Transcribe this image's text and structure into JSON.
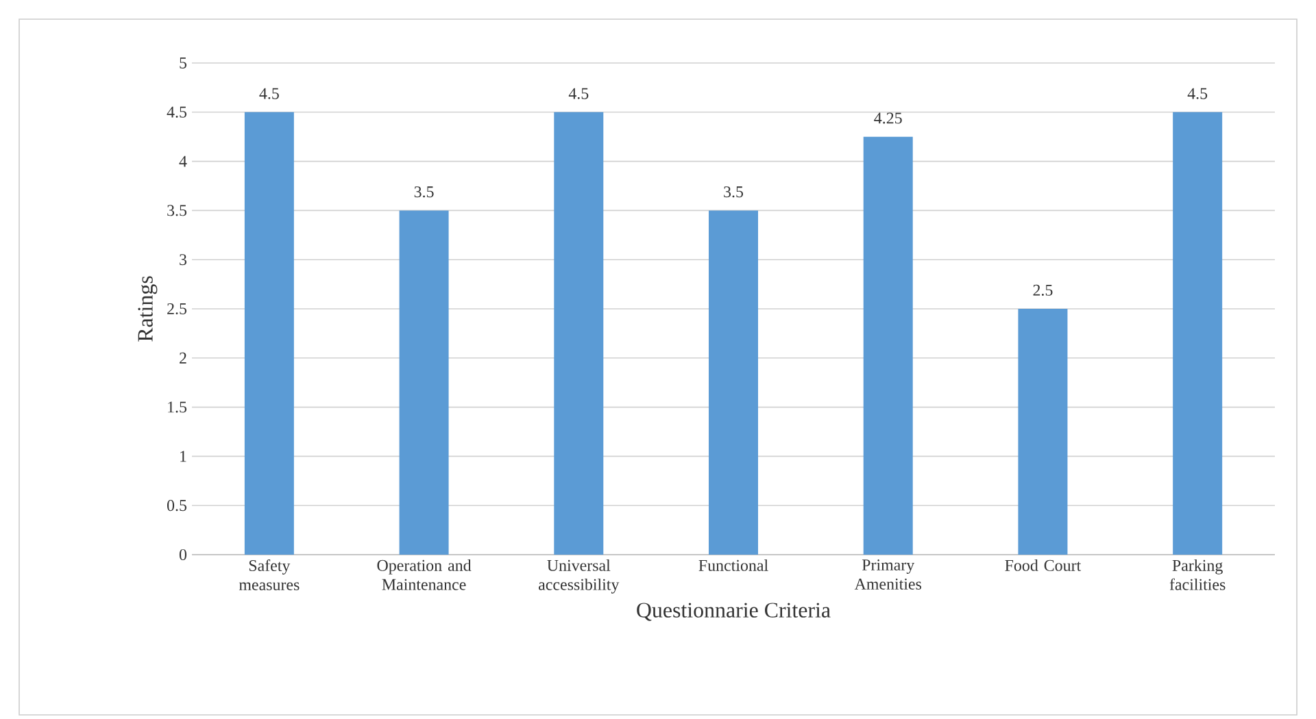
{
  "chart_data": {
    "type": "bar",
    "xlabel": "Questionnarie Criteria",
    "ylabel": "Ratings",
    "categories": [
      "Safety measures",
      "Operation and Maintenance",
      "Universal accessibility",
      "Functional",
      "Primary Amenities",
      "Food Court",
      "Parking facilities"
    ],
    "values": [
      4.5,
      3.5,
      4.5,
      3.5,
      4.25,
      2.5,
      4.5
    ],
    "color": "#5b9bd5",
    "ylim": [
      0,
      5
    ],
    "yticks": [
      0,
      0.5,
      1,
      1.5,
      2,
      2.5,
      3,
      3.5,
      4,
      4.5,
      5
    ],
    "grid": "y",
    "data_labels": true
  }
}
